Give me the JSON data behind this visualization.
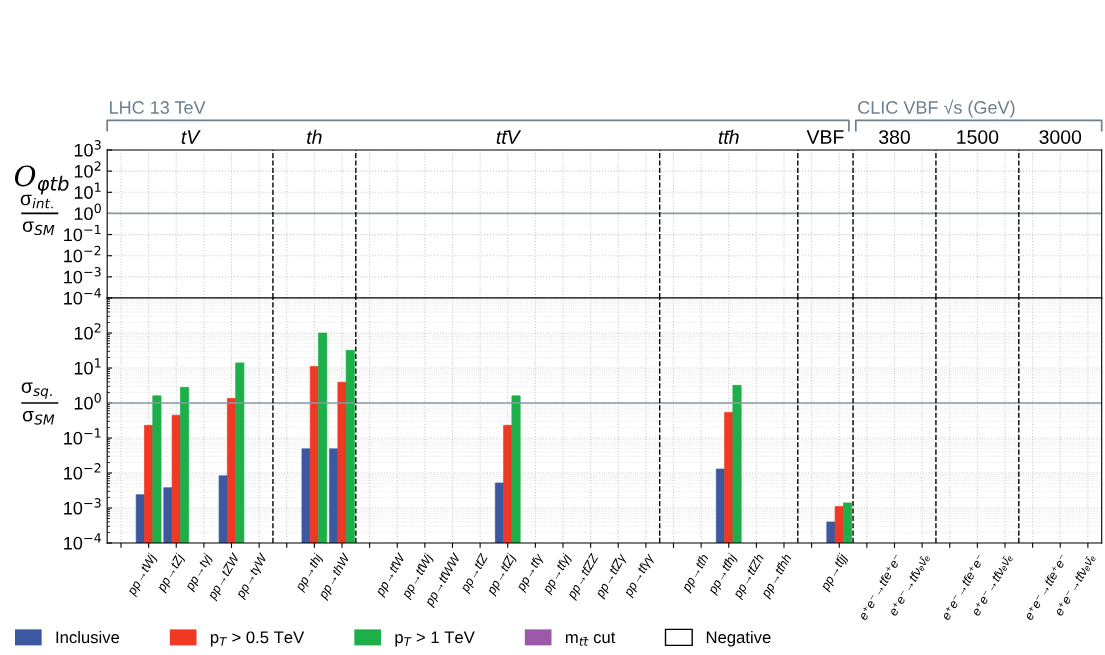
{
  "chart_data": [
    {
      "type": "bar",
      "title": "O$_{φtb}$",
      "ylabel": "σ$_{int.}$\nσ$_{SM}$",
      "categories": [
        null,
        null,
        null,
        null,
        null,
        null,
        null,
        null,
        null,
        null,
        null,
        null,
        null,
        null,
        null,
        null,
        null,
        null,
        null,
        null,
        null,
        null,
        null,
        null,
        null,
        null,
        null,
        null,
        null,
        null,
        null,
        null,
        null,
        null,
        null,
        null
      ],
      "values": [
        null,
        null,
        null,
        null,
        null,
        null,
        null,
        null,
        null,
        null,
        null,
        null,
        null,
        null,
        null,
        null,
        null,
        null,
        null,
        null,
        null,
        null,
        null,
        null,
        null,
        null,
        null,
        null,
        null,
        null,
        null,
        null,
        null,
        null,
        null,
        null
      ],
      "log": true,
      "ylim": [
        0.0001,
        1000
      ],
      "yticks": [
        {
          "value": 0.0001,
          "label": "10$^{−4}$"
        },
        {
          "value": 0.001,
          "label": "10$^{−3}$"
        },
        {
          "value": 0.01,
          "label": "10$^{−2}$"
        },
        {
          "value": 0.1,
          "label": "10$^{−1}$"
        },
        {
          "value": 1,
          "label": "10$^{0}$"
        },
        {
          "value": 10,
          "label": "10$^{1}$"
        },
        {
          "value": 100,
          "label": "10$^{2}$"
        },
        {
          "value": 1000,
          "label": "10$^{3}$"
        }
      ],
      "ref_lines": [
        {
          "axis": "y",
          "value": 1,
          "color": "#8a9aa6"
        }
      ],
      "annotations": [
        "tV",
        "th",
        "tt̄V",
        "tt̄h",
        "VBF",
        "380",
        "1500",
        "3000",
        "LHC 13 TeV",
        "CLIC VBF √s (GeV)"
      ],
      "grid": true,
      "tick_labels": "y"
    },
    {
      "type": "bar",
      "ylabel": "σ$_{sq.}$\nσ$_{SM}$",
      "categories": [
        null,
        "pp→tWj",
        "pp→tZj",
        "pp→tγj",
        "pp→tZW",
        "pp→tγW",
        null,
        "pp→thj",
        "pp→thW",
        null,
        "pp→tt̄W",
        "pp→tt̄Wj",
        "pp→tt̄WW",
        "pp→tt̄Z",
        "pp→tt̄Zj",
        "pp→tt̄γ",
        "pp→tt̄γj",
        "pp→tt̄ZZ",
        "pp→tt̄Zγ",
        "pp→tt̄γγ",
        null,
        "pp→tt̄h",
        "pp→tt̄hj",
        "pp→tt̄Zh",
        "pp→tt̄hh",
        null,
        "pp→tt̄jj",
        null,
        "e⁺e⁻→tt̄e⁺e⁻",
        "e⁺e⁻→tt̄νₑν̄ₑ",
        null,
        "e⁺e⁻→tt̄e⁺e⁻",
        "e⁺e⁻→tt̄νₑν̄ₑ",
        null,
        "e⁺e⁻→tt̄e⁺e⁻",
        "e⁺e⁻→tt̄νₑν̄ₑ"
      ],
      "series": [
        {
          "name": "Inclusive",
          "color": "#3c58a0",
          "values": [
            null,
            0.0024,
            0.0038,
            null,
            0.0083,
            null,
            null,
            0.049,
            0.049,
            null,
            null,
            null,
            null,
            null,
            0.0052,
            null,
            null,
            null,
            null,
            null,
            null,
            null,
            0.013,
            null,
            null,
            null,
            0.0004,
            null,
            null,
            null,
            null,
            null,
            null,
            null,
            null,
            null
          ]
        },
        {
          "name": "p$_{T}$ > 0.5 TeV",
          "color": "#ee3a24",
          "values": [
            null,
            0.23,
            0.45,
            null,
            1.35,
            null,
            null,
            11,
            3.9,
            null,
            null,
            null,
            null,
            null,
            0.23,
            null,
            null,
            null,
            null,
            null,
            null,
            null,
            0.54,
            null,
            null,
            null,
            0.0011,
            null,
            null,
            null,
            null,
            null,
            null,
            null,
            null,
            null
          ]
        },
        {
          "name": "p$_{T}$ > 1 TeV",
          "color": "#1db04a",
          "values": [
            null,
            1.6,
            2.8,
            null,
            14,
            null,
            null,
            100,
            32,
            null,
            null,
            null,
            null,
            null,
            1.6,
            null,
            null,
            null,
            null,
            null,
            null,
            null,
            3.2,
            null,
            null,
            null,
            0.0014,
            null,
            null,
            null,
            null,
            null,
            null,
            null,
            null,
            null
          ]
        },
        {
          "name": "m$_{tt̄}$ cut",
          "color": "#9b59a8",
          "values": [
            null,
            null,
            null,
            null,
            null,
            null,
            null,
            null,
            null,
            null,
            null,
            null,
            null,
            null,
            null,
            null,
            null,
            null,
            null,
            null,
            null,
            null,
            null,
            null,
            null,
            null,
            null,
            null,
            null,
            null,
            null,
            null,
            null,
            null,
            null,
            null
          ]
        },
        {
          "name": "Negative",
          "color": "#ffffff",
          "values": [
            null,
            null,
            null,
            null,
            null,
            null,
            null,
            null,
            null,
            null,
            null,
            null,
            null,
            null,
            null,
            null,
            null,
            null,
            null,
            null,
            null,
            null,
            null,
            null,
            null,
            null,
            null,
            null,
            null,
            null,
            null,
            null,
            null,
            null,
            null,
            null
          ]
        }
      ],
      "log": true,
      "ylim": [
        0.0001,
        1000
      ],
      "yticks": [
        {
          "value": 0.0001,
          "label": "10$^{−4}$"
        },
        {
          "value": 0.001,
          "label": "10$^{−3}$"
        },
        {
          "value": 0.01,
          "label": "10$^{−2}$"
        },
        {
          "value": 0.1,
          "label": "10$^{−1}$"
        },
        {
          "value": 1,
          "label": "10$^{0}$"
        },
        {
          "value": 10,
          "label": "10$^{1}$"
        },
        {
          "value": 100,
          "label": "10$^{2}$"
        },
        {
          "value": 1000,
          "label": null
        }
      ],
      "ref_lines": [
        {
          "axis": "y",
          "value": 1,
          "color": "#8a9aa6"
        }
      ],
      "grid": true,
      "legend": "bottom"
    }
  ]
}
